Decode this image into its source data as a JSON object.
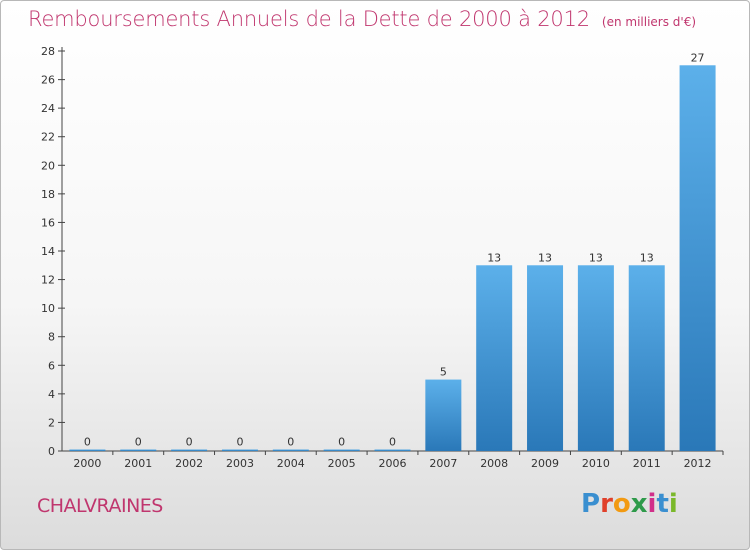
{
  "title": "Remboursements Annuels de la Dette de 2000 à 2012",
  "unit_note": "(en milliers d'€)",
  "commune": "CHALVRAINES",
  "logo": {
    "text": "Proxiti",
    "letter_colors": [
      "#3a8fd0",
      "#e0402a",
      "#f29a12",
      "#2e9a4a",
      "#d12f8a",
      "#3a8fd0",
      "#7ab82a"
    ]
  },
  "colors": {
    "title": "#c0366e",
    "bar_top": "#5cb0ea",
    "bar_bottom": "#2a78b8",
    "axis": "#444444",
    "text": "#333333"
  },
  "chart_data": {
    "type": "bar",
    "categories": [
      "2000",
      "2001",
      "2002",
      "2003",
      "2004",
      "2005",
      "2006",
      "2007",
      "2008",
      "2009",
      "2010",
      "2011",
      "2012"
    ],
    "values": [
      0,
      0,
      0,
      0,
      0,
      0,
      0,
      5,
      13,
      13,
      13,
      13,
      27
    ],
    "ylim": [
      0,
      28
    ],
    "yticks": [
      0,
      2,
      4,
      6,
      8,
      10,
      12,
      14,
      16,
      18,
      20,
      22,
      24,
      26,
      28
    ],
    "grid": false,
    "xlabel": "",
    "ylabel": ""
  }
}
